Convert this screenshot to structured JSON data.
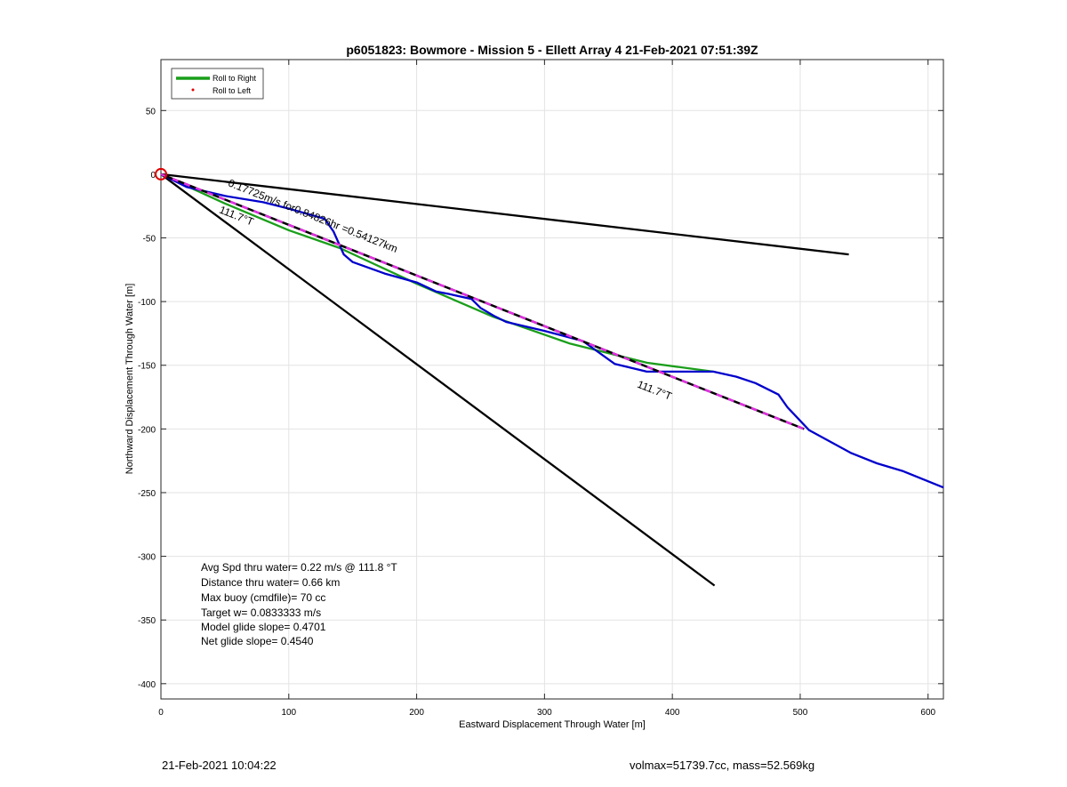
{
  "footer": {
    "timestamp": "21-Feb-2021 10:04:22",
    "vol_mass": "volmax=51739.7cc, mass=52.569kg"
  },
  "chart_data": {
    "type": "line",
    "title": "p6051823: Bowmore - Mission 5 - Ellett Array 4 21-Feb-2021 07:51:39Z",
    "xlabel": "Eastward Displacement Through Water [m]",
    "ylabel": "Northward Displacement Through Water [m]",
    "xlim": [
      0,
      612
    ],
    "ylim": [
      -412,
      90
    ],
    "xticks": [
      0,
      100,
      200,
      300,
      400,
      500,
      600
    ],
    "yticks": [
      50,
      0,
      -50,
      -100,
      -150,
      -200,
      -250,
      -300,
      -350,
      -400
    ],
    "grid": true,
    "legend": {
      "placement": "top-left",
      "entries": [
        {
          "label": "Roll to Right",
          "color": "#1a9e1a",
          "style": "line"
        },
        {
          "label": "Roll to Left",
          "color": "#e00000",
          "style": "dot"
        }
      ]
    },
    "series": [
      {
        "name": "Roll to Right",
        "color": "#1a9e1a",
        "x": [
          0,
          50,
          100,
          140,
          200,
          260,
          320,
          380,
          432
        ],
        "y": [
          0,
          -23,
          -44,
          -58,
          -86,
          -112,
          -133,
          -148,
          -155
        ]
      },
      {
        "color": "#0000cc",
        "x": [
          0,
          20,
          50,
          80,
          100,
          128,
          135,
          143,
          150,
          175,
          200,
          215,
          225,
          243,
          250,
          260,
          270,
          300,
          330,
          355,
          380,
          432,
          450,
          465,
          483,
          490,
          507,
          540,
          560,
          580,
          612
        ],
        "y": [
          0,
          -10,
          -17,
          -22,
          -27,
          -35,
          -45,
          -63,
          -69,
          -78,
          -85,
          -92,
          -94,
          -98,
          -105,
          -111,
          -116,
          -123,
          -131,
          -149,
          -155,
          -155,
          -159,
          -164,
          -173,
          -183,
          -201,
          -219,
          -227,
          -233,
          -246
        ]
      },
      {
        "color": "#000000",
        "x": [
          0,
          538
        ],
        "y": [
          0,
          -63
        ]
      },
      {
        "color": "#000000",
        "x": [
          0,
          433
        ],
        "y": [
          0,
          -323
        ]
      },
      {
        "color": "#000000",
        "dash": "magenta",
        "x": [
          0,
          503
        ],
        "y": [
          0,
          -200
        ]
      }
    ],
    "start_marker": {
      "x": 0,
      "y": 0,
      "color": "#e00000"
    },
    "annotations": [
      {
        "text": "0.17725m/s for0.84826hr =0.54127km",
        "x": 52,
        "y": -9,
        "rotate": 21.7
      },
      {
        "text": "111.7°T",
        "x": 45,
        "y": -30,
        "rotate": 21.7
      },
      {
        "text": "111.7°T",
        "x": 372,
        "y": -167,
        "rotate": 21.7
      }
    ],
    "stats": [
      "Avg Spd thru water=  0.22 m/s @ 111.8 °T",
      "Distance thru water=  0.66 km",
      "Max buoy (cmdfile)= 70 cc",
      "Target w= 0.0833333 m/s",
      "Model glide slope= 0.4701",
      "Net glide slope= 0.4540"
    ]
  }
}
